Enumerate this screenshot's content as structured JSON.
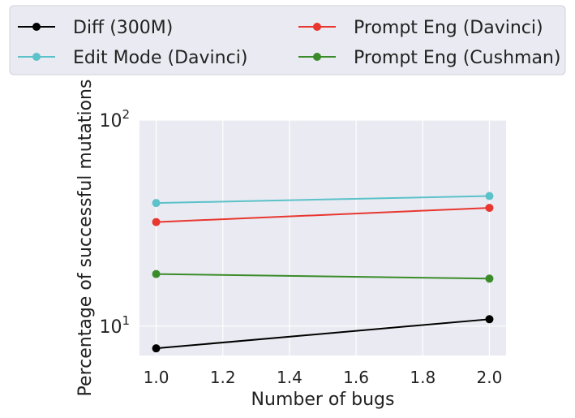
{
  "chart_data": {
    "type": "line",
    "x": [
      1.0,
      2.0
    ],
    "series": [
      {
        "name": "Diff (300M)",
        "color": "#000000",
        "values": [
          7.8,
          10.8
        ]
      },
      {
        "name": "Edit Mode (Davinci)",
        "color": "#5bc2c9",
        "values": [
          39.6,
          42.8
        ]
      },
      {
        "name": "Prompt Eng (Davinci)",
        "color": "#e8372f",
        "values": [
          32.0,
          37.5
        ]
      },
      {
        "name": "Prompt Eng (Cushman)",
        "color": "#3a8c2a",
        "values": [
          17.9,
          17.0
        ]
      }
    ],
    "xlabel": "Number of bugs",
    "ylabel": "Percentage of successful mutations",
    "xlim": [
      0.95,
      2.05
    ],
    "ylim": [
      7.2,
      100
    ],
    "yscale": "log",
    "xticks": [
      {
        "value": 1.0,
        "label": "1.0"
      },
      {
        "value": 1.2,
        "label": "1.2"
      },
      {
        "value": 1.4,
        "label": "1.4"
      },
      {
        "value": 1.6,
        "label": "1.6"
      },
      {
        "value": 1.8,
        "label": "1.8"
      },
      {
        "value": 2.0,
        "label": "2.0"
      }
    ],
    "yticks": [
      {
        "value": 10,
        "base": "10",
        "exp": "1"
      },
      {
        "value": 100,
        "base": "10",
        "exp": "2"
      }
    ],
    "grid": true,
    "legend": "top, two columns"
  }
}
